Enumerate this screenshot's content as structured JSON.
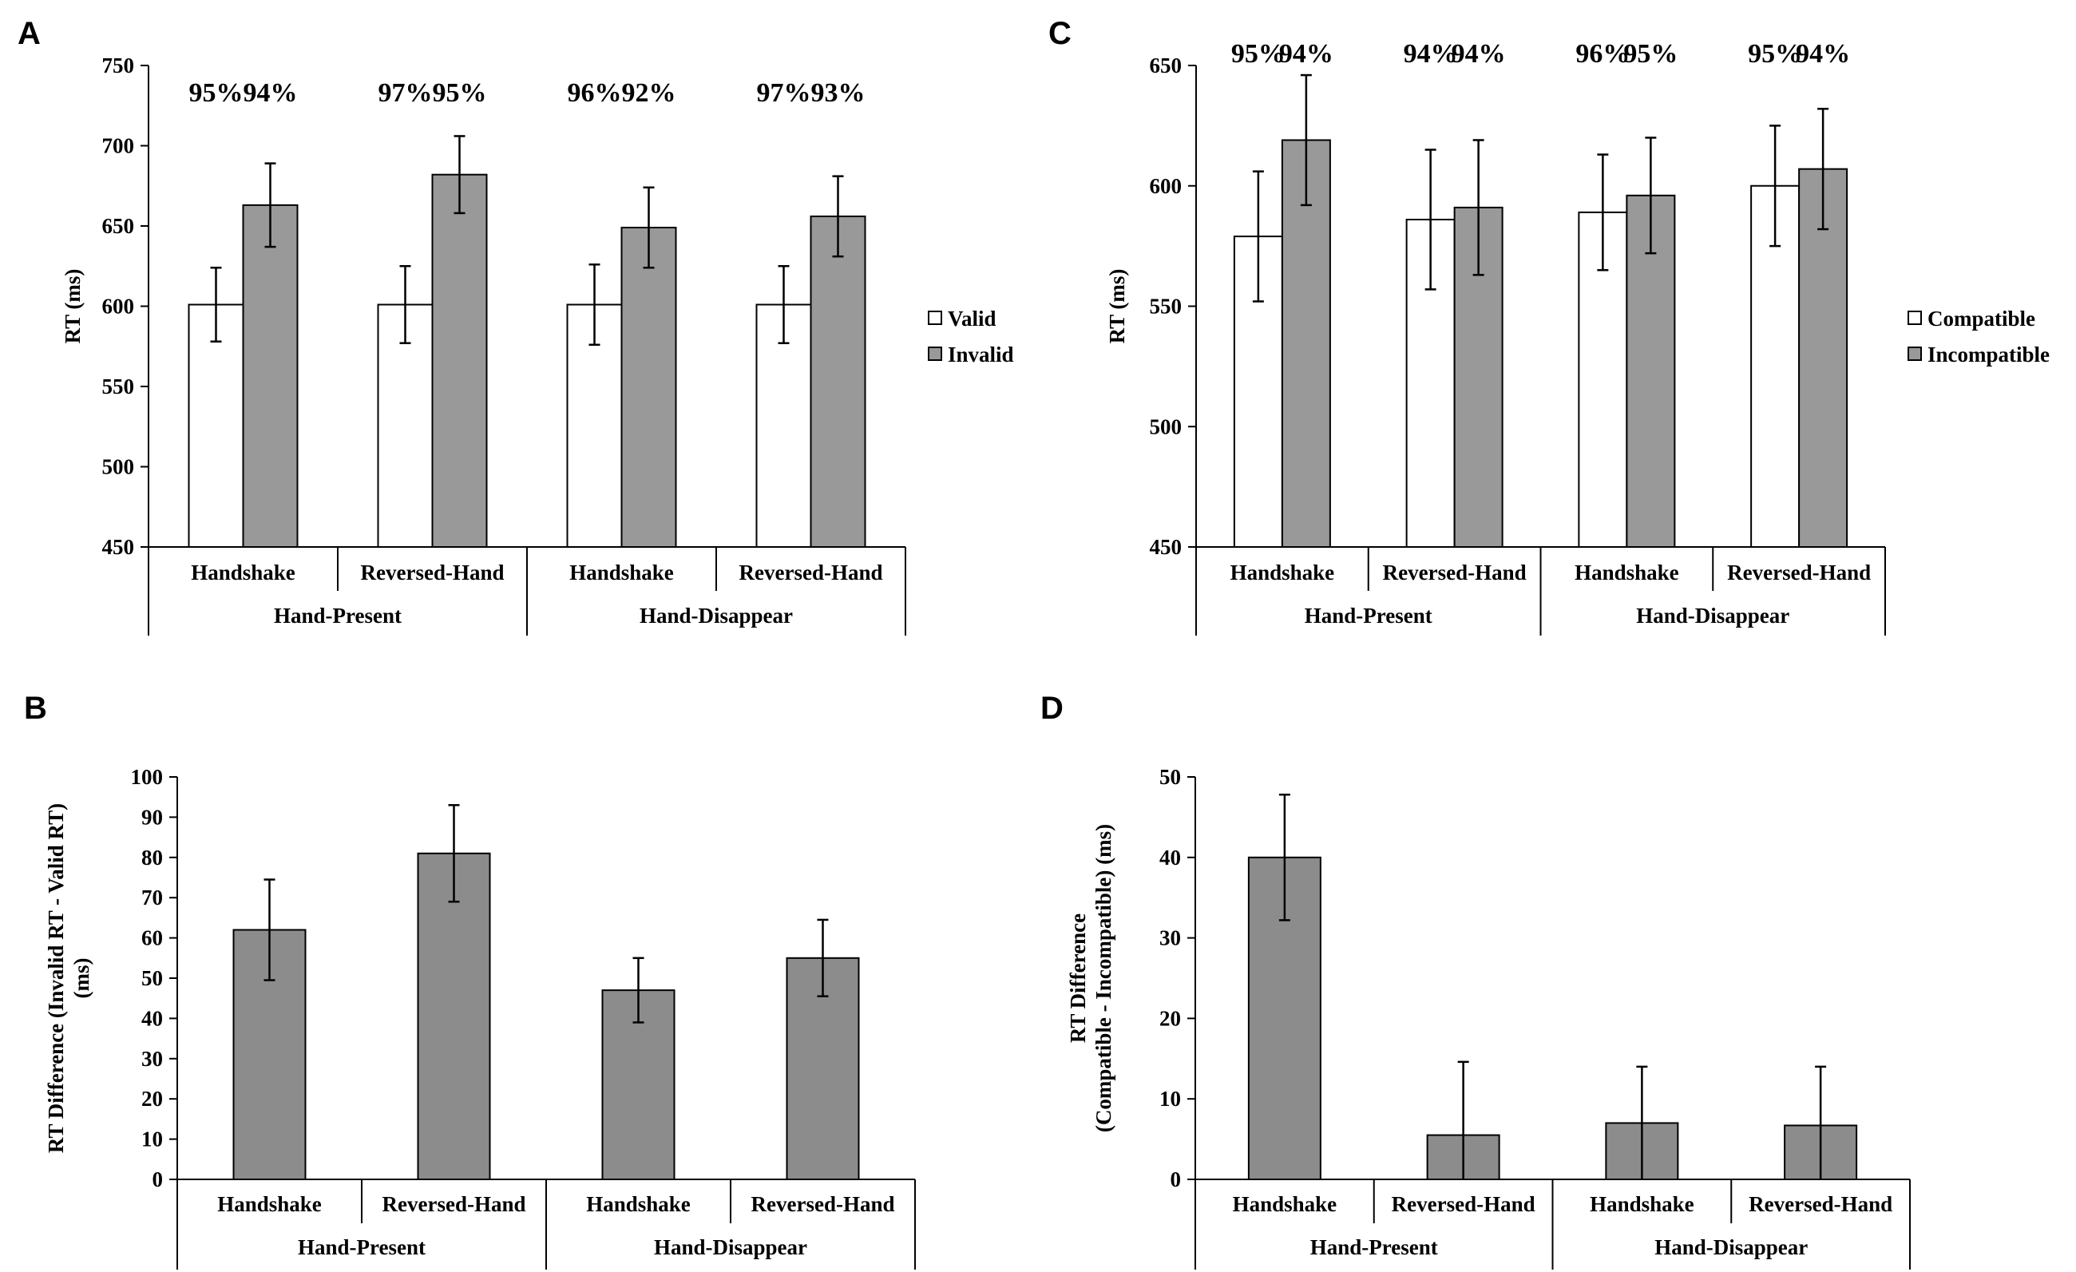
{
  "colors": {
    "bar_white": "#ffffff",
    "bar_gray": "#999999",
    "bar_diff": "#8c8c8c",
    "stroke": "#000000"
  },
  "chart_data": [
    {
      "panel": "A",
      "type": "bar",
      "ylabel": "RT (ms)",
      "ylim": [
        450,
        750
      ],
      "yticks": [
        450,
        500,
        550,
        600,
        650,
        700,
        750
      ],
      "categories": [
        "Handshake",
        "Reversed-Hand",
        "Handshake",
        "Reversed-Hand"
      ],
      "groups": [
        "Hand-Present",
        "Hand-Disappear"
      ],
      "series": [
        {
          "name": "Valid",
          "color": "#ffffff",
          "values": [
            601,
            601,
            601,
            601
          ],
          "errors": [
            23,
            24,
            25,
            24
          ],
          "accuracy": [
            "95%",
            "97%",
            "96%",
            "97%"
          ]
        },
        {
          "name": "Invalid",
          "color": "#999999",
          "values": [
            663,
            682,
            649,
            656
          ],
          "errors": [
            26,
            24,
            25,
            25
          ],
          "accuracy": [
            "94%",
            "95%",
            "92%",
            "93%"
          ]
        }
      ],
      "legend_position": "right"
    },
    {
      "panel": "B",
      "type": "bar",
      "ylabel": "RT Difference (Invalid RT - Valid RT) (ms)",
      "ylabel_lines": [
        "RT Difference (Invalid RT - Valid RT)",
        "(ms)"
      ],
      "ylim": [
        0,
        100
      ],
      "yticks": [
        0,
        10,
        20,
        30,
        40,
        50,
        60,
        70,
        80,
        90,
        100
      ],
      "categories": [
        "Handshake",
        "Reversed-Hand",
        "Handshake",
        "Reversed-Hand"
      ],
      "groups": [
        "Hand-Present",
        "Hand-Disappear"
      ],
      "series": [
        {
          "name": "RT Difference",
          "color": "#8c8c8c",
          "values": [
            62,
            81,
            47,
            55
          ],
          "errors": [
            12.5,
            12,
            8,
            9.5
          ]
        }
      ]
    },
    {
      "panel": "C",
      "type": "bar",
      "ylabel": "RT (ms)",
      "ylim": [
        450,
        650
      ],
      "yticks": [
        450,
        500,
        550,
        600,
        650
      ],
      "categories": [
        "Handshake",
        "Reversed-Hand",
        "Handshake",
        "Reversed-Hand"
      ],
      "groups": [
        "Hand-Present",
        "Hand-Disappear"
      ],
      "series": [
        {
          "name": "Compatible",
          "color": "#ffffff",
          "values": [
            579,
            586,
            589,
            600
          ],
          "errors": [
            27,
            29,
            24,
            25
          ],
          "accuracy": [
            "95%",
            "94%",
            "96%",
            "95%"
          ]
        },
        {
          "name": "Incompatible",
          "color": "#999999",
          "values": [
            619,
            591,
            596,
            607
          ],
          "errors": [
            27,
            28,
            24,
            25
          ],
          "accuracy": [
            "94%",
            "94%",
            "95%",
            "94%"
          ]
        }
      ],
      "legend_position": "right"
    },
    {
      "panel": "D",
      "type": "bar",
      "ylabel": "RT Difference (Compatible - Incompatible) (ms)",
      "ylabel_lines": [
        "RT Difference",
        "(Compatible - Incompatible) (ms)"
      ],
      "ylim": [
        0,
        50
      ],
      "yticks": [
        0,
        10,
        20,
        30,
        40,
        50
      ],
      "categories": [
        "Handshake",
        "Reversed-Hand",
        "Handshake",
        "Reversed-Hand"
      ],
      "groups": [
        "Hand-Present",
        "Hand-Disappear"
      ],
      "series": [
        {
          "name": "RT Difference",
          "color": "#8c8c8c",
          "values": [
            40,
            5.5,
            7,
            6.7
          ],
          "errors": [
            7.8,
            9.1,
            7,
            7.3
          ]
        }
      ]
    }
  ]
}
